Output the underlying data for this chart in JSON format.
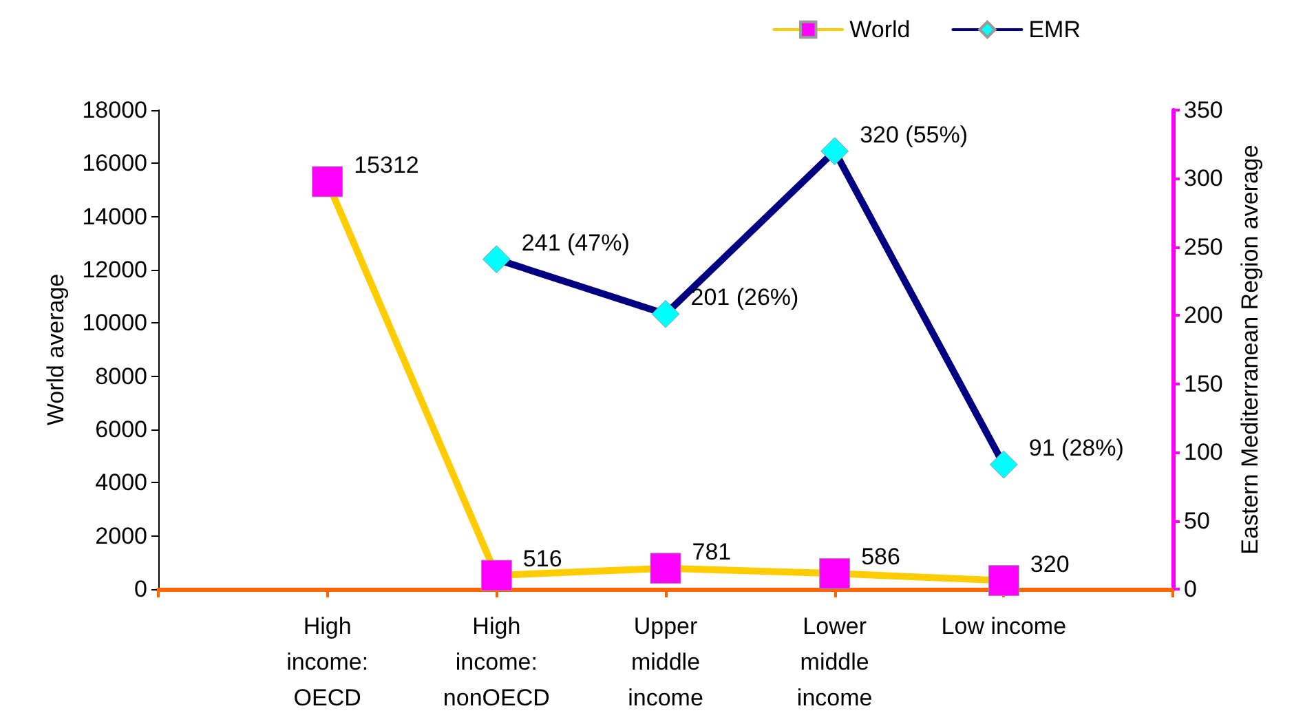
{
  "chart_data": {
    "type": "line",
    "categories": [
      "High\nincome:\nOECD",
      "High\nincome:\nnonOECD",
      "Upper\nmiddle\nincome",
      "Lower\nmiddle\nincome",
      "Low income"
    ],
    "ylabel": "World average",
    "y2label": "Eastern Mediterranean Region average",
    "ylim": [
      0,
      18000
    ],
    "yticks": [
      0,
      2000,
      4000,
      6000,
      8000,
      10000,
      12000,
      14000,
      16000,
      18000
    ],
    "y2lim": [
      0,
      350
    ],
    "y2ticks": [
      0,
      50,
      100,
      150,
      200,
      250,
      300,
      350
    ],
    "series": [
      {
        "name": "World",
        "color": "#ffcc00",
        "marker": "square",
        "values": [
          15312,
          516,
          781,
          586,
          320
        ],
        "value_labels": [
          "15312",
          "516",
          "781",
          "586",
          "320"
        ]
      },
      {
        "name": "EMR",
        "color": "#000080",
        "marker": "diamond",
        "axis": "y2",
        "values": [
          null,
          241,
          201,
          320,
          91
        ],
        "value_labels": [
          null,
          "241 (47%)",
          "201 (26%)",
          "320 (55%)",
          "91 (28%)"
        ]
      }
    ],
    "legend": "top right",
    "grid": false
  }
}
